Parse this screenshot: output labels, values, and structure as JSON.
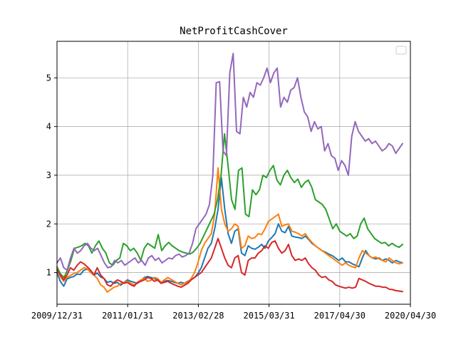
{
  "chart_data": {
    "type": "line",
    "title": "NetProfitCashCover",
    "xlabel": "",
    "ylabel": "",
    "x_ticks": [
      "2009/12/31",
      "2011/01/31",
      "2013/02/28",
      "2015/03/31",
      "2017/04/30",
      "2020/04/30"
    ],
    "y_ticks": [
      "1",
      "2",
      "3",
      "4",
      "5"
    ],
    "ylim": [
      0.35,
      5.75
    ],
    "grid": true,
    "legend": {
      "entries": [],
      "placement": "upper-right"
    },
    "series": [
      {
        "color": "#1f77b4",
        "values": [
          1.0,
          0.82,
          0.72,
          0.87,
          0.9,
          0.92,
          0.97,
          0.96,
          1.05,
          1.07,
          1.02,
          0.95,
          0.99,
          0.91,
          0.88,
          0.8,
          0.82,
          0.78,
          0.8,
          0.74,
          0.8,
          0.85,
          0.82,
          0.8,
          0.78,
          0.83,
          0.9,
          0.92,
          0.9,
          0.88,
          0.84,
          0.8,
          0.82,
          0.84,
          0.82,
          0.8,
          0.78,
          0.8,
          0.78,
          0.82,
          0.86,
          0.9,
          0.98,
          1.1,
          1.3,
          1.5,
          1.6,
          1.9,
          2.3,
          2.95,
          2.3,
          1.8,
          1.6,
          1.85,
          1.9,
          1.4,
          1.35,
          1.55,
          1.5,
          1.48,
          1.52,
          1.58,
          1.5,
          1.65,
          1.72,
          1.8,
          2.0,
          1.85,
          1.82,
          1.95,
          1.75,
          1.73,
          1.72,
          1.7,
          1.75,
          1.68,
          1.6,
          1.55,
          1.5,
          1.45,
          1.42,
          1.38,
          1.35,
          1.3,
          1.25,
          1.3,
          1.22,
          1.22,
          1.18,
          1.15,
          1.12,
          1.3,
          1.45,
          1.35,
          1.3,
          1.28,
          1.3,
          1.25,
          1.28,
          1.25,
          1.2,
          1.25,
          1.22,
          1.2
        ]
      },
      {
        "color": "#ff7f0e",
        "values": [
          1.08,
          0.92,
          0.82,
          0.9,
          0.94,
          0.98,
          1.0,
          1.05,
          1.1,
          1.08,
          1.0,
          0.95,
          0.88,
          0.75,
          0.7,
          0.6,
          0.65,
          0.7,
          0.72,
          0.78,
          0.8,
          0.82,
          0.78,
          0.75,
          0.8,
          0.85,
          0.88,
          0.82,
          0.84,
          0.9,
          0.88,
          0.8,
          0.85,
          0.9,
          0.86,
          0.82,
          0.78,
          0.75,
          0.78,
          0.8,
          0.88,
          1.0,
          1.2,
          1.45,
          1.6,
          1.7,
          1.8,
          2.2,
          3.15,
          2.3,
          2.0,
          1.85,
          1.9,
          2.0,
          1.95,
          1.5,
          1.55,
          1.75,
          1.7,
          1.72,
          1.8,
          1.78,
          1.9,
          2.05,
          2.1,
          2.15,
          2.2,
          1.95,
          1.98,
          2.0,
          1.85,
          1.83,
          1.8,
          1.75,
          1.8,
          1.7,
          1.62,
          1.55,
          1.5,
          1.45,
          1.4,
          1.35,
          1.3,
          1.25,
          1.2,
          1.15,
          1.2,
          1.15,
          1.12,
          1.1,
          1.3,
          1.45,
          1.4,
          1.35,
          1.3,
          1.32,
          1.28,
          1.25,
          1.22,
          1.3,
          1.25,
          1.2,
          1.18,
          1.2
        ]
      },
      {
        "color": "#2ca02c",
        "values": [
          1.12,
          0.97,
          0.9,
          1.05,
          1.25,
          1.5,
          1.52,
          1.55,
          1.6,
          1.55,
          1.4,
          1.55,
          1.65,
          1.5,
          1.4,
          1.2,
          1.15,
          1.25,
          1.3,
          1.6,
          1.55,
          1.45,
          1.5,
          1.4,
          1.25,
          1.5,
          1.6,
          1.55,
          1.5,
          1.78,
          1.45,
          1.55,
          1.62,
          1.55,
          1.5,
          1.45,
          1.42,
          1.4,
          1.38,
          1.42,
          1.5,
          1.6,
          1.75,
          1.9,
          2.05,
          2.2,
          2.5,
          3.0,
          3.85,
          3.2,
          2.5,
          2.3,
          3.1,
          3.15,
          2.2,
          2.15,
          2.7,
          2.6,
          2.7,
          3.0,
          2.95,
          3.1,
          3.2,
          2.9,
          2.8,
          3.0,
          3.1,
          2.95,
          2.85,
          2.92,
          2.75,
          2.85,
          2.9,
          2.75,
          2.5,
          2.45,
          2.4,
          2.3,
          2.1,
          1.9,
          2.0,
          1.85,
          1.8,
          1.75,
          1.8,
          1.7,
          1.75,
          2.0,
          2.12,
          1.9,
          1.8,
          1.7,
          1.65,
          1.6,
          1.62,
          1.55,
          1.6,
          1.55,
          1.52,
          1.58
        ]
      },
      {
        "color": "#d62728",
        "values": [
          1.05,
          0.95,
          0.85,
          0.95,
          1.1,
          1.05,
          1.15,
          1.22,
          1.18,
          1.12,
          1.05,
          0.95,
          1.1,
          0.95,
          0.88,
          0.75,
          0.72,
          0.8,
          0.85,
          0.82,
          0.78,
          0.8,
          0.75,
          0.72,
          0.8,
          0.82,
          0.85,
          0.9,
          0.88,
          0.82,
          0.85,
          0.78,
          0.8,
          0.82,
          0.78,
          0.75,
          0.72,
          0.7,
          0.74,
          0.78,
          0.85,
          0.9,
          0.95,
          1.0,
          1.1,
          1.2,
          1.3,
          1.5,
          1.7,
          1.5,
          1.3,
          1.15,
          1.1,
          1.3,
          1.35,
          1.0,
          0.95,
          1.25,
          1.3,
          1.3,
          1.4,
          1.45,
          1.55,
          1.5,
          1.62,
          1.65,
          1.5,
          1.4,
          1.45,
          1.58,
          1.35,
          1.25,
          1.28,
          1.25,
          1.3,
          1.18,
          1.1,
          1.05,
          0.95,
          0.9,
          0.92,
          0.85,
          0.82,
          0.75,
          0.72,
          0.7,
          0.68,
          0.7,
          0.68,
          0.7,
          0.88,
          0.85,
          0.82,
          0.78,
          0.75,
          0.72,
          0.72,
          0.7,
          0.7,
          0.66,
          0.65,
          0.63,
          0.62,
          0.61
        ]
      },
      {
        "color": "#9467bd",
        "values": [
          1.2,
          1.3,
          1.1,
          1.05,
          1.3,
          1.5,
          1.4,
          1.45,
          1.55,
          1.6,
          1.5,
          1.45,
          1.5,
          1.35,
          1.2,
          1.1,
          1.12,
          1.25,
          1.2,
          1.25,
          1.15,
          1.2,
          1.25,
          1.3,
          1.2,
          1.25,
          1.15,
          1.3,
          1.35,
          1.25,
          1.3,
          1.2,
          1.25,
          1.3,
          1.28,
          1.35,
          1.38,
          1.32,
          1.35,
          1.4,
          1.6,
          1.9,
          2.0,
          2.1,
          2.2,
          2.4,
          3.0,
          4.9,
          4.92,
          3.5,
          3.4,
          5.1,
          5.5,
          3.9,
          3.85,
          4.6,
          4.4,
          4.7,
          4.6,
          4.9,
          4.85,
          5.0,
          5.2,
          4.9,
          5.1,
          5.2,
          4.4,
          4.6,
          4.5,
          4.75,
          4.8,
          5.0,
          4.6,
          4.3,
          4.2,
          3.9,
          4.1,
          3.95,
          4.0,
          3.5,
          3.65,
          3.4,
          3.35,
          3.1,
          3.3,
          3.2,
          3.0,
          3.8,
          4.1,
          3.9,
          3.8,
          3.7,
          3.75,
          3.65,
          3.7,
          3.6,
          3.5,
          3.55,
          3.65,
          3.6,
          3.45,
          3.55,
          3.65
        ]
      }
    ]
  }
}
